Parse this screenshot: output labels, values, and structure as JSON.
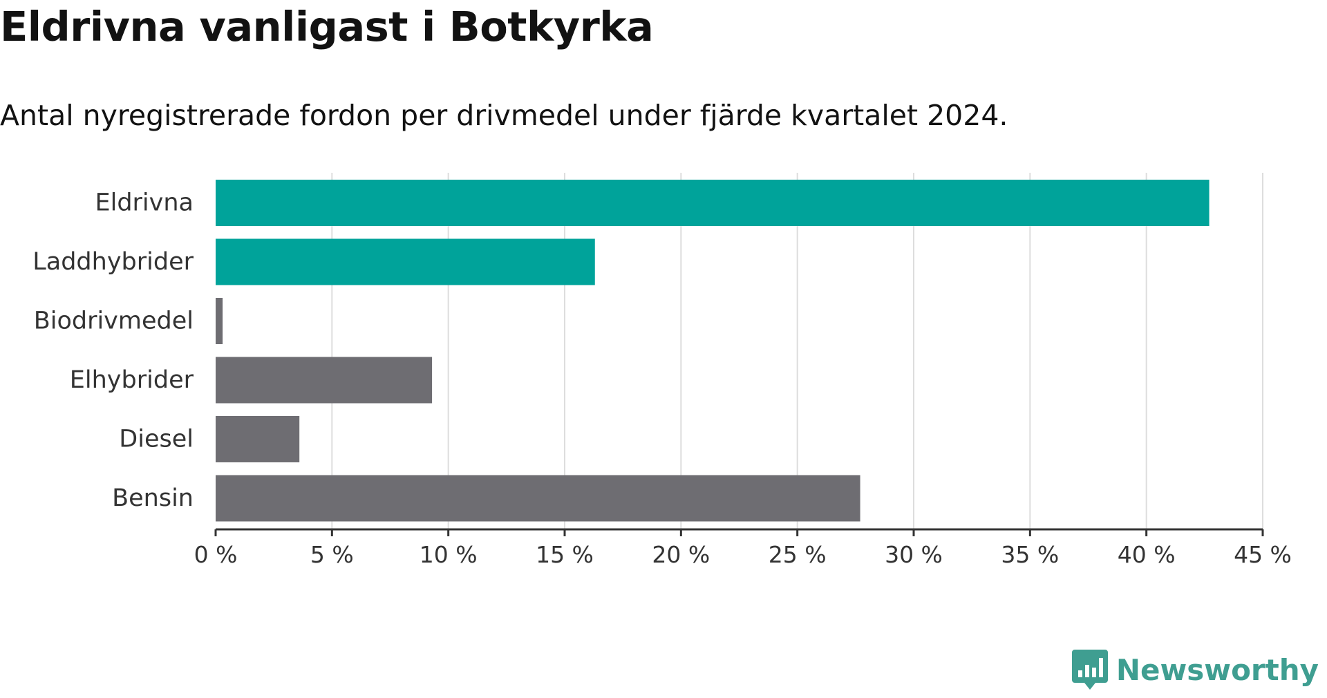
{
  "title": "Eldrivna vanligast i Botkyrka",
  "subtitle": "Antal nyregistrerade fordon per drivmedel under fjärde kvartalet 2024.",
  "brand": {
    "name": "Newsworthy",
    "color": "#3f9e91",
    "icon": "newsworthy-logo-icon"
  },
  "colors": {
    "highlight": "#00a39a",
    "neutral": "#6e6d72",
    "grid": "#dddddd",
    "axis": "#333333",
    "text": "#333333"
  },
  "chart_data": {
    "type": "bar",
    "orientation": "horizontal",
    "categories": [
      "Eldrivna",
      "Laddhybrider",
      "Biodrivmedel",
      "Elhybrider",
      "Diesel",
      "Bensin"
    ],
    "values": [
      42.7,
      16.3,
      0.3,
      9.3,
      3.6,
      27.7
    ],
    "highlighted": [
      true,
      true,
      false,
      false,
      false,
      false
    ],
    "xlim": [
      0,
      45
    ],
    "ticks": [
      0,
      5,
      10,
      15,
      20,
      25,
      30,
      35,
      40,
      45
    ],
    "tick_labels": [
      "0 %",
      "5 %",
      "10 %",
      "15 %",
      "20 %",
      "25 %",
      "30 %",
      "35 %",
      "40 %",
      "45 %"
    ],
    "xlabel": "",
    "ylabel": "",
    "grid": true,
    "legend": "none"
  }
}
